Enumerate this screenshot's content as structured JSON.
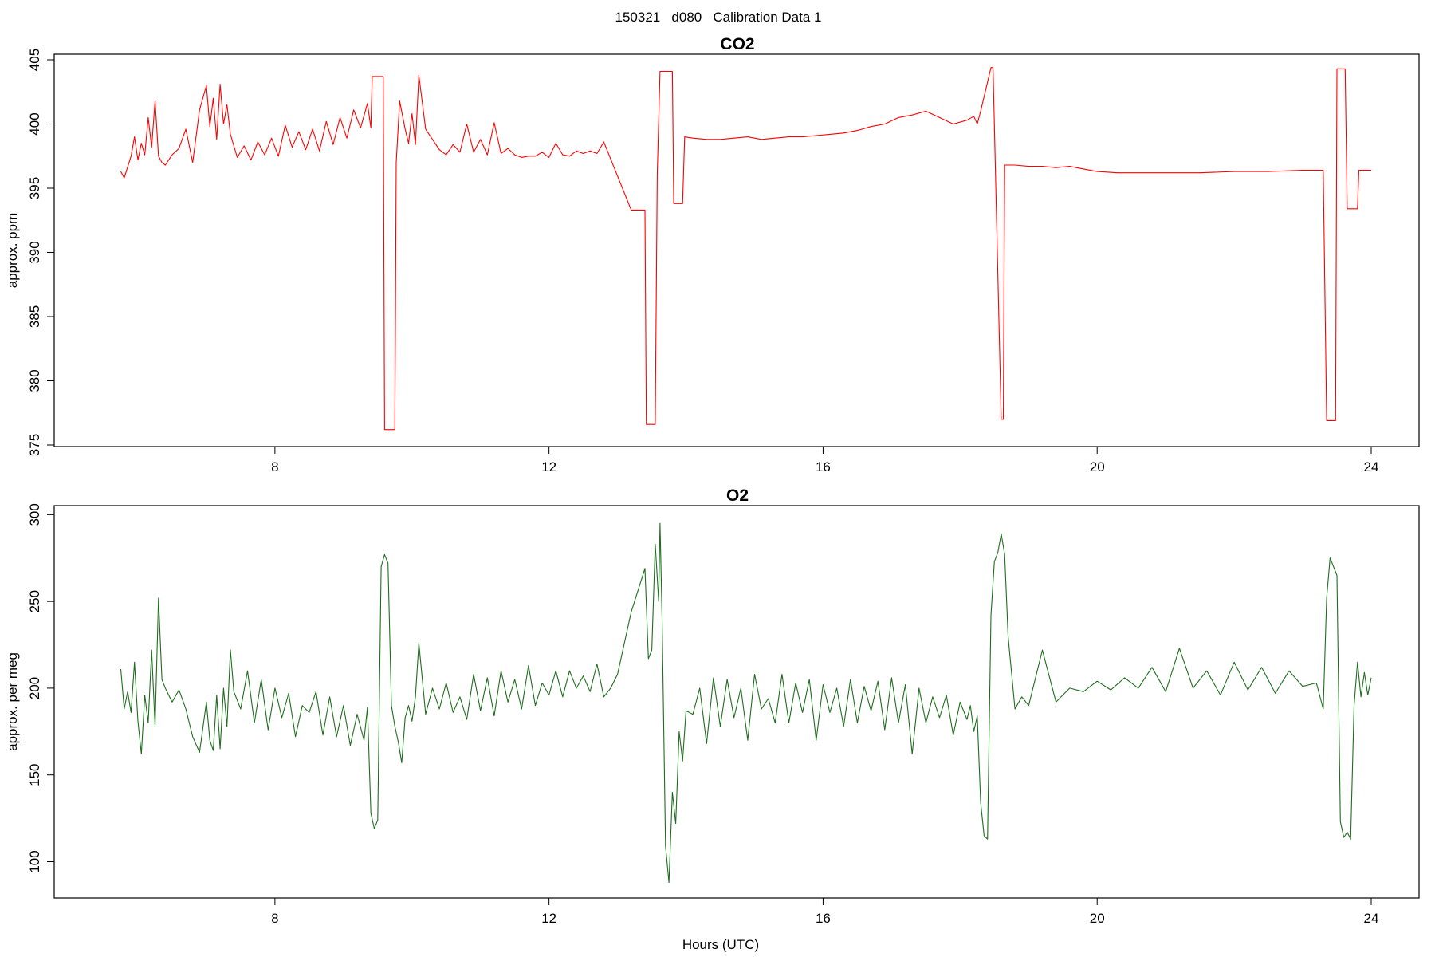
{
  "figure": {
    "title": "150321   d080   Calibration Data 1",
    "xlabel": "Hours (UTC)"
  },
  "chart_data": [
    {
      "type": "line",
      "title": "CO2",
      "xlabel": "",
      "ylabel": "approx. ppm",
      "xlim": [
        5.5,
        24
      ],
      "ylim": [
        375,
        405
      ],
      "xticks": [
        8,
        12,
        16,
        20,
        24
      ],
      "yticks": [
        375,
        380,
        385,
        390,
        395,
        400,
        405
      ],
      "grid": false,
      "color": "#ff0000",
      "series": [
        {
          "x": [
            5.75,
            5.8,
            5.9,
            5.95,
            6.0,
            6.05,
            6.1,
            6.15,
            6.2,
            6.25,
            6.3,
            6.35,
            6.4,
            6.5,
            6.6,
            6.7,
            6.8,
            6.9,
            7.0,
            7.05,
            7.1,
            7.15,
            7.2,
            7.25,
            7.3,
            7.35,
            7.45,
            7.55,
            7.65,
            7.75,
            7.85,
            7.95,
            8.05,
            8.15,
            8.25,
            8.35,
            8.45,
            8.55,
            8.65,
            8.75,
            8.85,
            8.95,
            9.05,
            9.15,
            9.25,
            9.35,
            9.4,
            9.42,
            9.58,
            9.6,
            9.75,
            9.77,
            9.82,
            9.9,
            9.95,
            10.0,
            10.05,
            10.1,
            10.2,
            10.3,
            10.4,
            10.5,
            10.6,
            10.7,
            10.8,
            10.9,
            11.0,
            11.1,
            11.2,
            11.3,
            11.4,
            11.5,
            11.6,
            11.7,
            11.8,
            11.9,
            12.0,
            12.1,
            12.2,
            12.3,
            12.4,
            12.5,
            12.6,
            12.7,
            12.8,
            13.2,
            13.4,
            13.42,
            13.55,
            13.58,
            13.62,
            13.65,
            13.8,
            13.82,
            13.95,
            13.98,
            14.1,
            14.3,
            14.5,
            14.7,
            14.9,
            15.1,
            15.3,
            15.5,
            15.7,
            15.9,
            16.1,
            16.3,
            16.5,
            16.7,
            16.9,
            17.1,
            17.3,
            17.5,
            17.7,
            17.9,
            18.1,
            18.2,
            18.25,
            18.3,
            18.45,
            18.48,
            18.6,
            18.63,
            18.65,
            18.8,
            19.0,
            19.2,
            19.4,
            19.6,
            19.8,
            20.0,
            20.3,
            20.6,
            21.0,
            21.5,
            22.0,
            22.5,
            23.0,
            23.3,
            23.35,
            23.48,
            23.5,
            23.62,
            23.65,
            23.8,
            23.82,
            24.0
          ],
          "y": [
            396.3,
            395.8,
            397.5,
            399.0,
            397.2,
            398.5,
            397.6,
            400.5,
            398.2,
            401.8,
            397.5,
            397.0,
            396.8,
            397.6,
            398.1,
            399.6,
            397.0,
            401.1,
            403.0,
            399.8,
            402.0,
            398.8,
            403.1,
            400.0,
            401.5,
            399.2,
            397.4,
            398.3,
            397.2,
            398.6,
            397.6,
            398.9,
            397.5,
            399.9,
            398.2,
            399.4,
            398.0,
            399.6,
            397.9,
            400.2,
            398.4,
            400.5,
            398.9,
            401.1,
            399.7,
            401.6,
            399.7,
            403.7,
            403.7,
            376.2,
            376.2,
            397.0,
            401.8,
            399.6,
            398.5,
            400.8,
            398.4,
            403.8,
            399.6,
            398.8,
            398.0,
            397.6,
            398.4,
            397.8,
            400.0,
            397.8,
            398.8,
            397.6,
            400.1,
            397.7,
            398.1,
            397.6,
            397.4,
            397.5,
            397.5,
            397.8,
            397.4,
            398.5,
            397.6,
            397.5,
            397.9,
            397.7,
            397.9,
            397.7,
            398.6,
            393.3,
            393.3,
            376.6,
            376.6,
            396.0,
            404.1,
            404.1,
            404.1,
            393.8,
            393.8,
            399.0,
            398.9,
            398.8,
            398.8,
            398.9,
            399.0,
            398.8,
            398.9,
            399.0,
            399.0,
            399.1,
            399.2,
            399.3,
            399.5,
            399.8,
            400.0,
            400.5,
            400.7,
            401.0,
            400.5,
            400.0,
            400.3,
            400.6,
            400.0,
            401.0,
            404.4,
            404.4,
            377.0,
            377.0,
            396.8,
            396.8,
            396.7,
            396.7,
            396.6,
            396.7,
            396.5,
            396.3,
            396.2,
            396.2,
            396.2,
            396.2,
            396.3,
            396.3,
            396.4,
            396.4,
            376.9,
            376.9,
            404.3,
            404.3,
            393.4,
            393.4,
            396.4,
            396.4
          ]
        }
      ]
    },
    {
      "type": "line",
      "title": "O2",
      "xlabel": "Hours (UTC)",
      "ylabel": "approx. per meg",
      "xlim": [
        5.5,
        24
      ],
      "ylim": [
        80,
        302
      ],
      "xticks": [
        8,
        12,
        16,
        20,
        24
      ],
      "yticks": [
        100,
        150,
        200,
        250,
        300
      ],
      "grid": false,
      "color": "#1e6e1e",
      "series": [
        {
          "x": [
            5.75,
            5.8,
            5.85,
            5.9,
            5.95,
            6.0,
            6.05,
            6.1,
            6.15,
            6.2,
            6.25,
            6.3,
            6.35,
            6.4,
            6.45,
            6.5,
            6.6,
            6.7,
            6.8,
            6.9,
            7.0,
            7.05,
            7.1,
            7.15,
            7.2,
            7.25,
            7.3,
            7.35,
            7.4,
            7.5,
            7.6,
            7.7,
            7.8,
            7.9,
            8.0,
            8.1,
            8.2,
            8.3,
            8.4,
            8.5,
            8.6,
            8.7,
            8.8,
            8.9,
            9.0,
            9.1,
            9.2,
            9.3,
            9.35,
            9.4,
            9.45,
            9.5,
            9.55,
            9.6,
            9.65,
            9.7,
            9.75,
            9.8,
            9.85,
            9.9,
            9.95,
            10.0,
            10.05,
            10.1,
            10.2,
            10.3,
            10.4,
            10.5,
            10.6,
            10.7,
            10.8,
            10.9,
            11.0,
            11.1,
            11.2,
            11.3,
            11.4,
            11.5,
            11.6,
            11.7,
            11.8,
            11.9,
            12.0,
            12.1,
            12.2,
            12.3,
            12.4,
            12.5,
            12.6,
            12.7,
            12.8,
            12.9,
            13.0,
            13.2,
            13.4,
            13.45,
            13.5,
            13.55,
            13.6,
            13.62,
            13.65,
            13.7,
            13.75,
            13.8,
            13.85,
            13.9,
            13.95,
            14.0,
            14.1,
            14.2,
            14.3,
            14.4,
            14.5,
            14.6,
            14.7,
            14.8,
            14.9,
            15.0,
            15.1,
            15.2,
            15.3,
            15.4,
            15.5,
            15.6,
            15.7,
            15.8,
            15.9,
            16.0,
            16.1,
            16.2,
            16.3,
            16.4,
            16.5,
            16.6,
            16.7,
            16.8,
            16.9,
            17.0,
            17.1,
            17.2,
            17.3,
            17.4,
            17.5,
            17.6,
            17.7,
            17.8,
            17.9,
            18.0,
            18.1,
            18.15,
            18.2,
            18.25,
            18.3,
            18.35,
            18.4,
            18.45,
            18.5,
            18.55,
            18.6,
            18.65,
            18.7,
            18.8,
            18.9,
            19.0,
            19.2,
            19.4,
            19.6,
            19.8,
            20.0,
            20.2,
            20.4,
            20.6,
            20.8,
            21.0,
            21.2,
            21.4,
            21.6,
            21.8,
            22.0,
            22.2,
            22.4,
            22.6,
            22.8,
            23.0,
            23.2,
            23.3,
            23.35,
            23.4,
            23.45,
            23.5,
            23.55,
            23.6,
            23.65,
            23.7,
            23.75,
            23.8,
            23.85,
            23.9,
            23.95,
            24.0
          ],
          "y": [
            211,
            188,
            198,
            186,
            215,
            181,
            162,
            196,
            180,
            222,
            178,
            252,
            205,
            200,
            196,
            192,
            199,
            188,
            172,
            163,
            192,
            170,
            164,
            196,
            165,
            200,
            178,
            222,
            198,
            188,
            210,
            180,
            205,
            176,
            200,
            183,
            197,
            172,
            190,
            186,
            198,
            173,
            195,
            172,
            190,
            167,
            185,
            170,
            189,
            128,
            119,
            124,
            270,
            277,
            272,
            190,
            178,
            169,
            157,
            183,
            190,
            181,
            195,
            226,
            185,
            200,
            188,
            203,
            186,
            195,
            182,
            208,
            187,
            206,
            184,
            210,
            192,
            205,
            188,
            213,
            190,
            203,
            196,
            210,
            195,
            210,
            200,
            207,
            198,
            214,
            195,
            200,
            208,
            244,
            269,
            217,
            222,
            283,
            250,
            295,
            240,
            109,
            88,
            140,
            122,
            175,
            158,
            187,
            185,
            200,
            168,
            206,
            178,
            205,
            183,
            200,
            170,
            208,
            188,
            194,
            180,
            208,
            180,
            203,
            186,
            205,
            170,
            202,
            186,
            200,
            178,
            205,
            180,
            201,
            187,
            204,
            176,
            206,
            180,
            202,
            162,
            200,
            180,
            195,
            183,
            196,
            173,
            192,
            182,
            190,
            175,
            184,
            134,
            115,
            113,
            242,
            273,
            278,
            289,
            277,
            230,
            188,
            195,
            190,
            222,
            192,
            200,
            198,
            204,
            199,
            206,
            200,
            212,
            198,
            223,
            200,
            210,
            196,
            215,
            199,
            212,
            197,
            210,
            201,
            203,
            188,
            252,
            275,
            270,
            265,
            123,
            114,
            117,
            113,
            190,
            215,
            195,
            209,
            196,
            206
          ]
        }
      ]
    }
  ]
}
